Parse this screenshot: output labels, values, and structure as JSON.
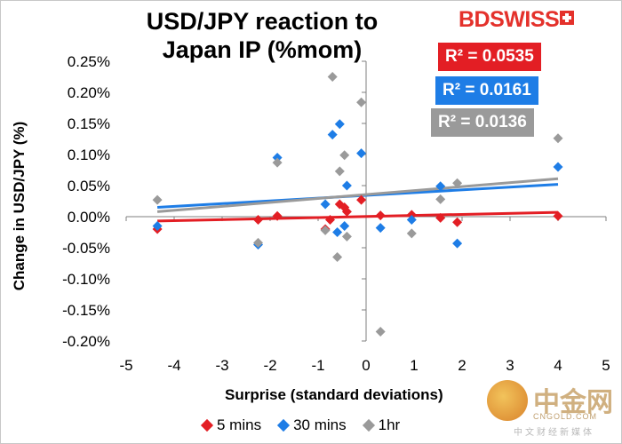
{
  "header": {
    "title": "USD/JPY reaction to Japan IP (%mom)",
    "logo": {
      "left": "BD",
      "right": "SWISS",
      "icon": "swiss-cross-icon",
      "color": "#e4312b"
    }
  },
  "r2_labels": [
    {
      "text": "R² = 0.0535",
      "color": "#e31e24"
    },
    {
      "text": "R² = 0.0161",
      "color": "#1e7de6"
    },
    {
      "text": "R² = 0.0136",
      "color": "#9a9a9a"
    }
  ],
  "chart_data": {
    "type": "scatter",
    "title": "USD/JPY reaction to Japan IP (%mom)",
    "xlabel": "Surprise (standard deviations)",
    "ylabel": "Change in USD/JPY (%)",
    "xlim": [
      -5,
      5
    ],
    "ylim": [
      -0.2,
      0.25
    ],
    "x_ticks": [
      "-5",
      "-4",
      "-3",
      "-2",
      "-1",
      "0",
      "1",
      "2",
      "3",
      "4",
      "5"
    ],
    "y_ticks": [
      "-0.20%",
      "-0.15%",
      "-0.10%",
      "-0.05%",
      "0.00%",
      "0.05%",
      "0.10%",
      "0.15%",
      "0.20%",
      "0.25%"
    ],
    "grid": false,
    "legend_position": "bottom",
    "series": [
      {
        "name": "5 mins",
        "color": "#e31e24",
        "points": [
          [
            -4.35,
            -0.02
          ],
          [
            -2.25,
            -0.005
          ],
          [
            -1.85,
            0.001
          ],
          [
            -0.85,
            -0.02
          ],
          [
            -0.75,
            -0.005
          ],
          [
            -0.55,
            0.02
          ],
          [
            -0.45,
            0.015
          ],
          [
            -0.4,
            0.008
          ],
          [
            -0.1,
            0.027
          ],
          [
            0.3,
            0.002
          ],
          [
            0.95,
            0.003
          ],
          [
            1.55,
            -0.002
          ],
          [
            1.9,
            -0.009
          ],
          [
            4.0,
            0.001
          ]
        ],
        "trendline": {
          "from": [
            -4.35,
            -0.007
          ],
          "to": [
            4.0,
            0.007
          ],
          "r2": "R² = 0.0535"
        }
      },
      {
        "name": "30 mins",
        "color": "#1e7de6",
        "points": [
          [
            -4.35,
            -0.015
          ],
          [
            -2.25,
            -0.045
          ],
          [
            -1.85,
            0.095
          ],
          [
            -0.85,
            0.02
          ],
          [
            -0.7,
            0.132
          ],
          [
            -0.55,
            0.149
          ],
          [
            -0.4,
            0.05
          ],
          [
            -0.6,
            -0.025
          ],
          [
            -0.45,
            -0.015
          ],
          [
            -0.1,
            0.102
          ],
          [
            0.3,
            -0.018
          ],
          [
            0.95,
            -0.005
          ],
          [
            1.55,
            0.049
          ],
          [
            1.9,
            -0.043
          ],
          [
            4.0,
            0.08
          ]
        ],
        "trendline": {
          "from": [
            -4.35,
            0.015
          ],
          "to": [
            4.0,
            0.052
          ],
          "r2": "R² = 0.0161"
        }
      },
      {
        "name": "1hr",
        "color": "#9a9a9a",
        "points": [
          [
            -4.35,
            0.027
          ],
          [
            -2.25,
            -0.042
          ],
          [
            -1.85,
            0.087
          ],
          [
            -0.85,
            -0.022
          ],
          [
            -0.7,
            0.225
          ],
          [
            -0.55,
            0.073
          ],
          [
            -0.45,
            0.099
          ],
          [
            -0.6,
            -0.065
          ],
          [
            -0.4,
            -0.032
          ],
          [
            -0.1,
            0.184
          ],
          [
            0.3,
            -0.185
          ],
          [
            0.95,
            -0.027
          ],
          [
            1.55,
            0.028
          ],
          [
            1.9,
            0.054
          ],
          [
            4.0,
            0.126
          ]
        ],
        "trendline": {
          "from": [
            -4.35,
            0.008
          ],
          "to": [
            4.0,
            0.061
          ],
          "r2": "R² = 0.0136"
        }
      }
    ]
  },
  "watermark": {
    "name": "中金网",
    "domain": "CNGOLD.COM",
    "subtitle": "中文财经新媒体"
  }
}
